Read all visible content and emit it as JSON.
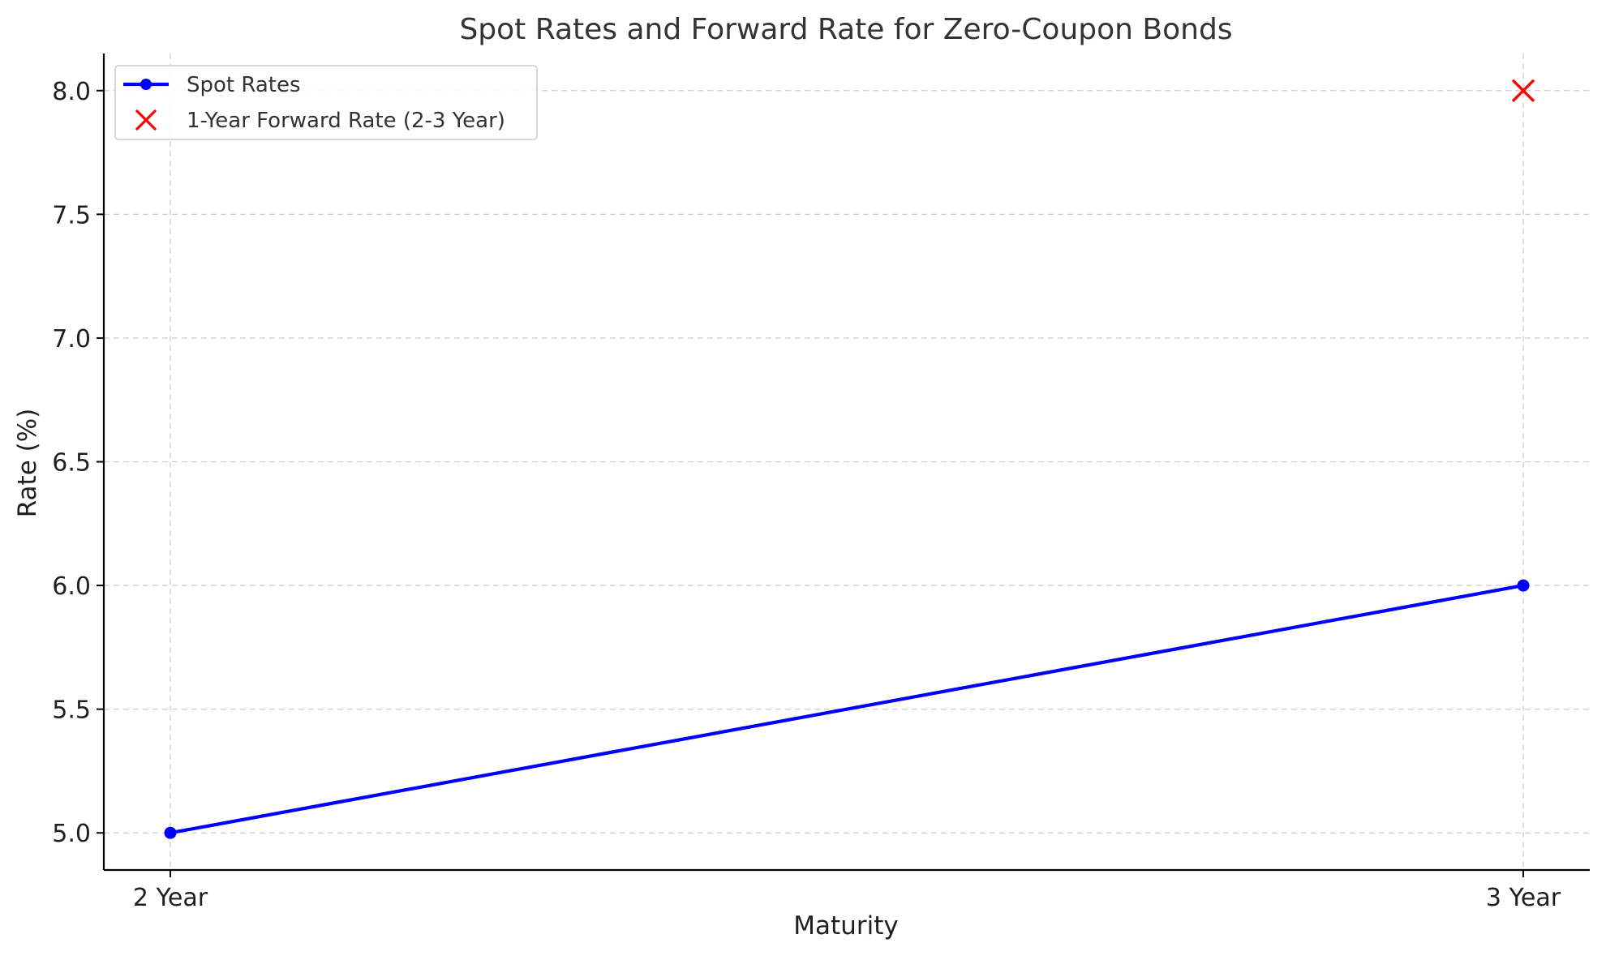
{
  "chart_data": {
    "type": "line",
    "title": "Spot Rates and Forward Rate for Zero-Coupon Bonds",
    "xlabel": "Maturity",
    "ylabel": "Rate (%)",
    "categories": [
      "2 Year",
      "3 Year"
    ],
    "ylim": [
      4.85,
      8.15
    ],
    "yticks": [
      5.0,
      5.5,
      6.0,
      6.5,
      7.0,
      7.5,
      8.0
    ],
    "ytick_labels": [
      "5.0",
      "5.5",
      "6.0",
      "6.5",
      "7.0",
      "7.5",
      "8.0"
    ],
    "grid": true,
    "legend_position": "top-left",
    "series": [
      {
        "name": "Spot Rates",
        "kind": "line",
        "marker": "circle",
        "color": "#0000ff",
        "x": [
          "2 Year",
          "3 Year"
        ],
        "values": [
          5.0,
          6.0
        ]
      },
      {
        "name": "1-Year Forward Rate (2-3 Year)",
        "kind": "scatter",
        "marker": "x",
        "color": "#ff0000",
        "x": [
          "3 Year"
        ],
        "values": [
          8.0
        ]
      }
    ]
  }
}
